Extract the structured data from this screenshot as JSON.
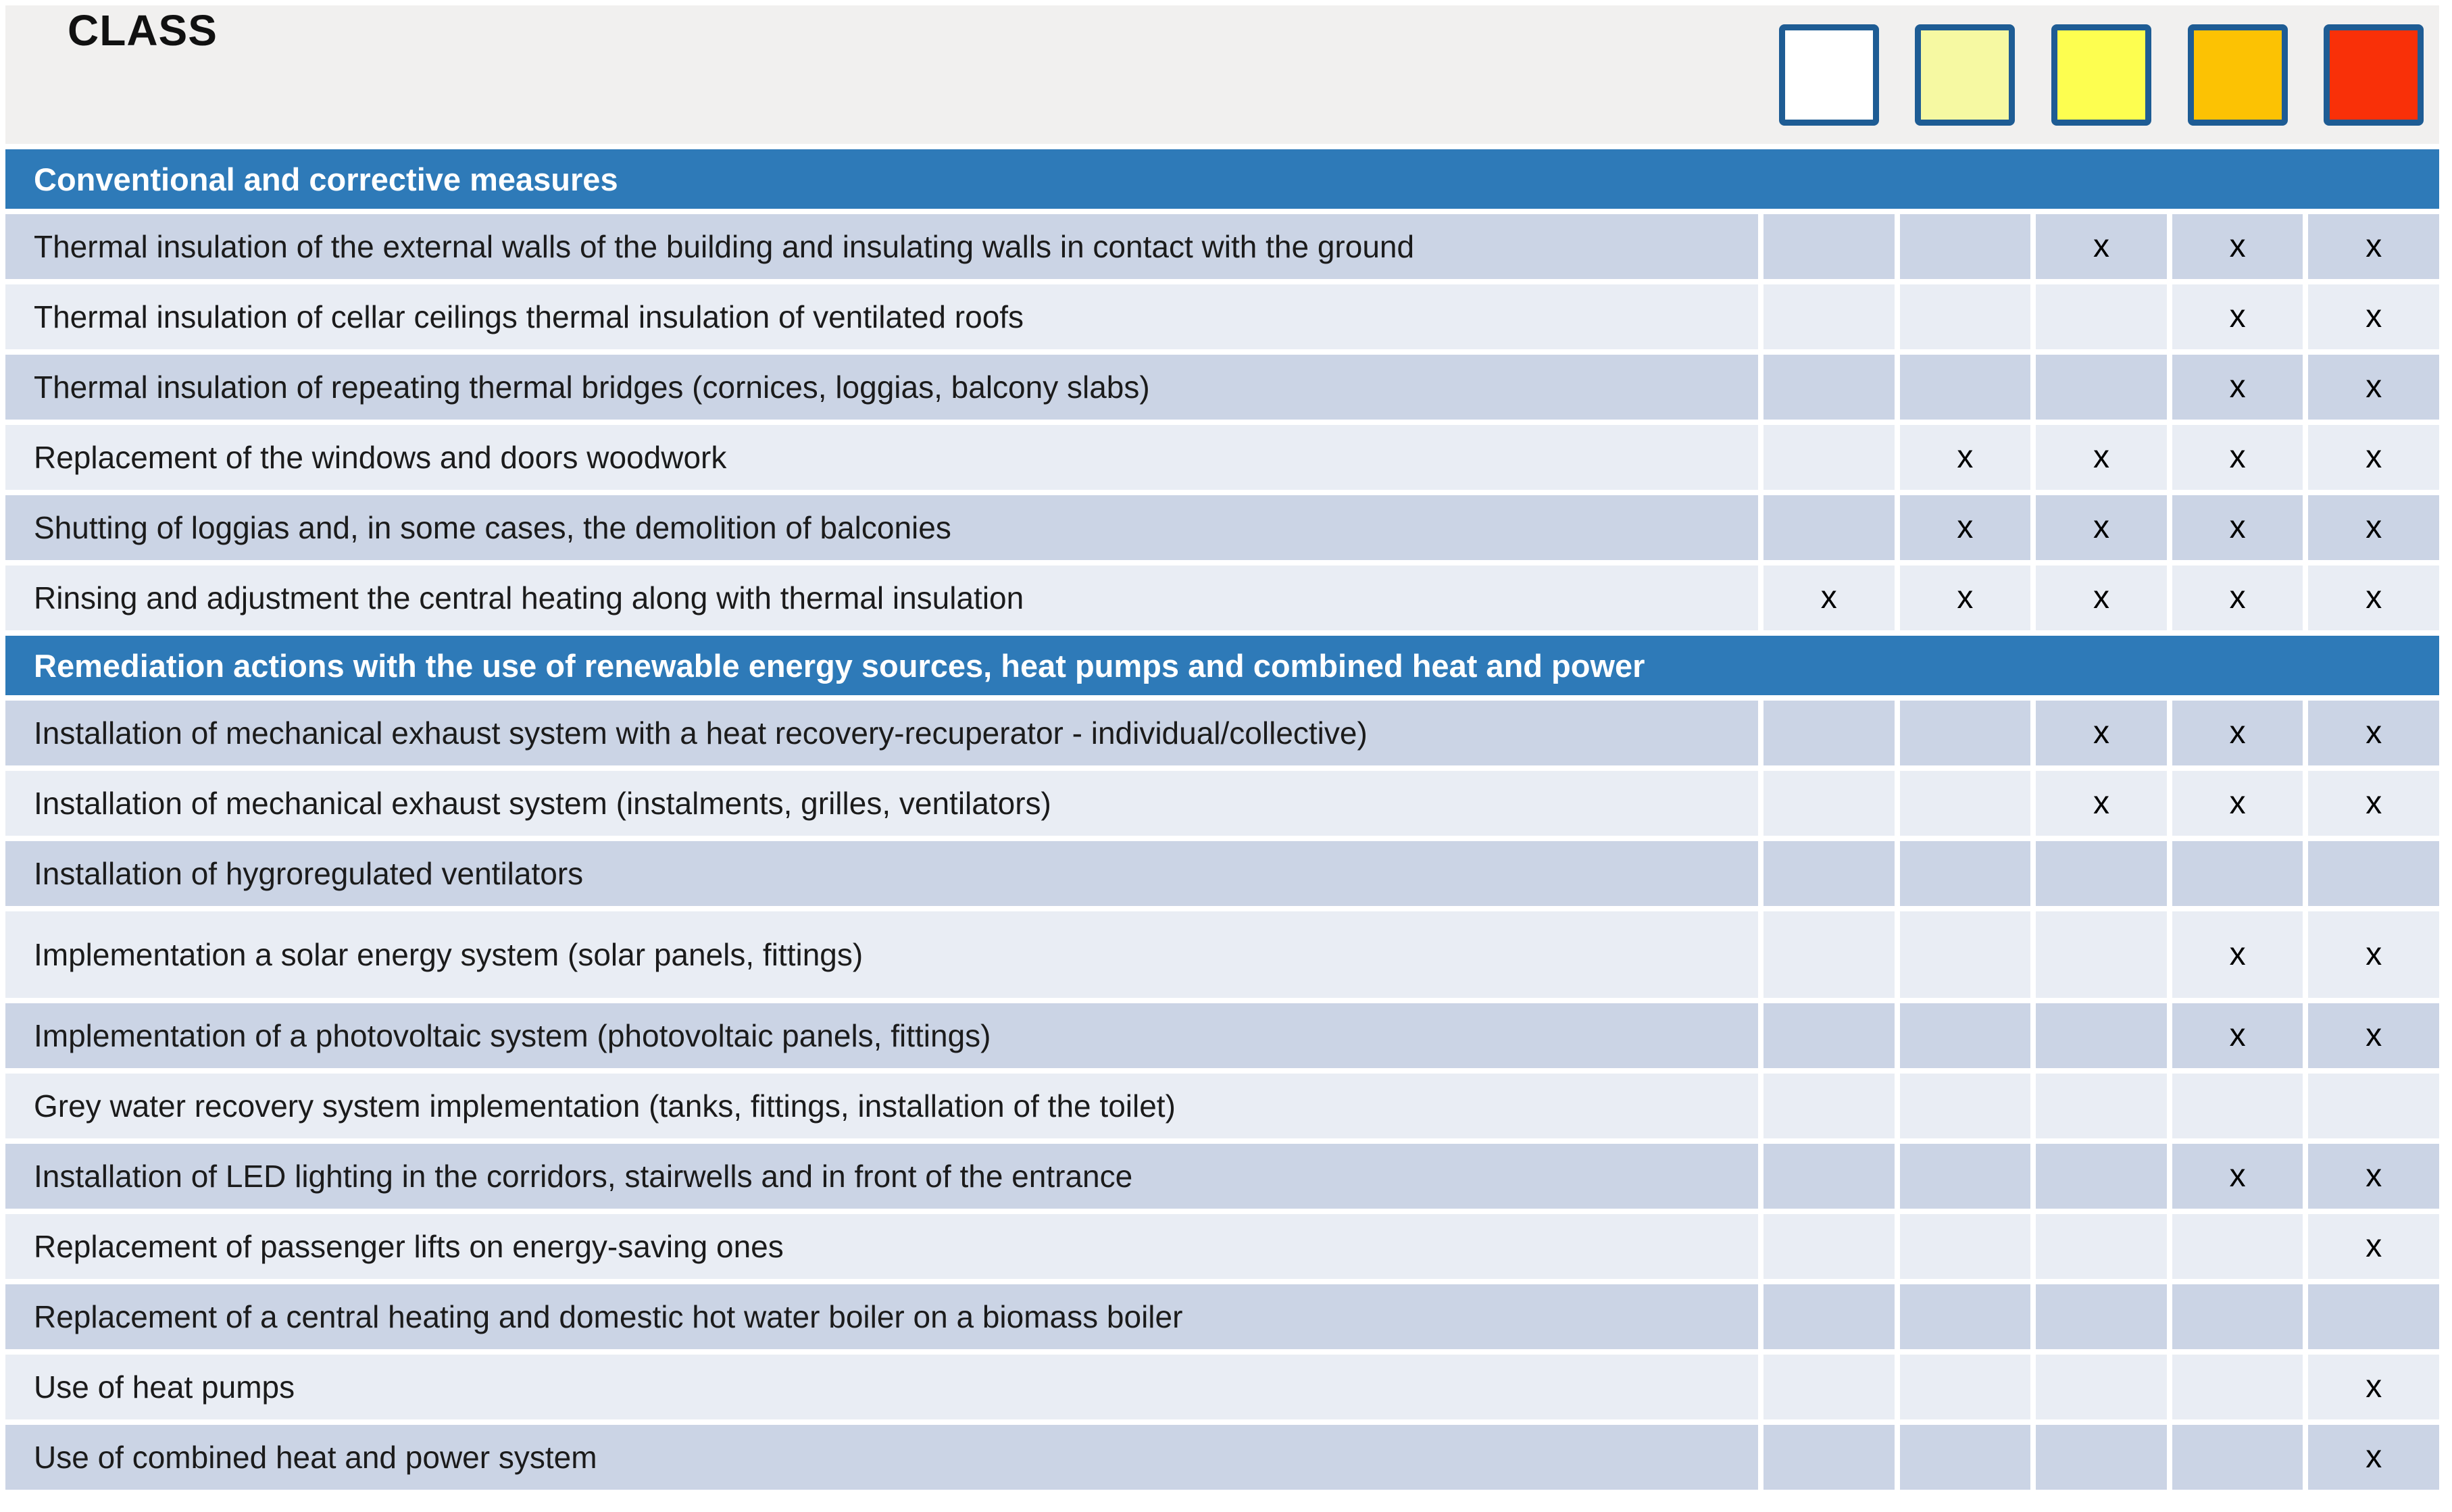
{
  "header": {
    "title": "CLASS",
    "swatches": [
      {
        "name": "class-swatch-white",
        "fill": "#ffffff"
      },
      {
        "name": "class-swatch-pale-yellow",
        "fill": "#f6f9a2"
      },
      {
        "name": "class-swatch-yellow",
        "fill": "#fdfe50"
      },
      {
        "name": "class-swatch-orange",
        "fill": "#fcc203"
      },
      {
        "name": "class-swatch-red",
        "fill": "#f93008"
      }
    ],
    "swatch_border_color": "#1e5c94"
  },
  "mark_glyph": "x",
  "colors": {
    "header_bg": "#f1f0ef",
    "section_bar": "#2e7ab8",
    "row_dark": "#cbd4e5",
    "row_light": "#e9edf4",
    "text": "#1b1b1b"
  },
  "sections": [
    {
      "title": "Conventional and corrective measures",
      "rows": [
        {
          "label": "Thermal insulation of the external walls of the building and insulating walls in contact with the ground",
          "marks": [
            0,
            0,
            1,
            1,
            1
          ]
        },
        {
          "label": "Thermal insulation of cellar ceilings thermal insulation of ventilated roofs",
          "marks": [
            0,
            0,
            0,
            1,
            1
          ]
        },
        {
          "label": "Thermal insulation of repeating thermal bridges (cornices, loggias, balcony slabs)",
          "marks": [
            0,
            0,
            0,
            1,
            1
          ]
        },
        {
          "label": "Replacement of the windows and doors woodwork",
          "marks": [
            0,
            1,
            1,
            1,
            1
          ]
        },
        {
          "label": "Shutting of loggias  and, in some cases, the demolition of balconies",
          "marks": [
            0,
            1,
            1,
            1,
            1
          ]
        },
        {
          "label": "Rinsing and adjustment the central heating along with thermal insulation",
          "marks": [
            1,
            1,
            1,
            1,
            1
          ]
        }
      ]
    },
    {
      "title": "Remediation actions with the use of renewable energy sources, heat pumps and combined heat and power",
      "rows": [
        {
          "label": "Installation of mechanical exhaust system with a heat recovery-recuperator - individual/collective)",
          "marks": [
            0,
            0,
            1,
            1,
            1
          ]
        },
        {
          "label": "Installation of mechanical exhaust system (instalments, grilles, ventilators)",
          "marks": [
            0,
            0,
            1,
            1,
            1
          ]
        },
        {
          "label": "Installation of hygroregulated ventilators",
          "marks": [
            0,
            0,
            0,
            0,
            0
          ]
        },
        {
          "label": "Implementation a solar energy system (solar panels, fittings)",
          "marks": [
            0,
            0,
            0,
            1,
            1
          ],
          "tall": true
        },
        {
          "label": "Implementation of a photovoltaic system (photovoltaic panels, fittings)",
          "marks": [
            0,
            0,
            0,
            1,
            1
          ]
        },
        {
          "label": "Grey water recovery system implementation (tanks, fittings, installation of the toilet)",
          "marks": [
            0,
            0,
            0,
            0,
            0
          ]
        },
        {
          "label": "Installation of LED lighting in the corridors, stairwells and in front of the entrance",
          "marks": [
            0,
            0,
            0,
            1,
            1
          ]
        },
        {
          "label": "Replacement of passenger lifts on energy-saving ones",
          "marks": [
            0,
            0,
            0,
            0,
            1
          ]
        },
        {
          "label": "Replacement of a central heating and domestic hot water boiler on a biomass boiler",
          "marks": [
            0,
            0,
            0,
            0,
            0
          ]
        },
        {
          "label": "Use of heat pumps",
          "marks": [
            0,
            0,
            0,
            0,
            1
          ]
        },
        {
          "label": "Use of combined heat and power system",
          "marks": [
            0,
            0,
            0,
            0,
            1
          ]
        }
      ]
    }
  ]
}
